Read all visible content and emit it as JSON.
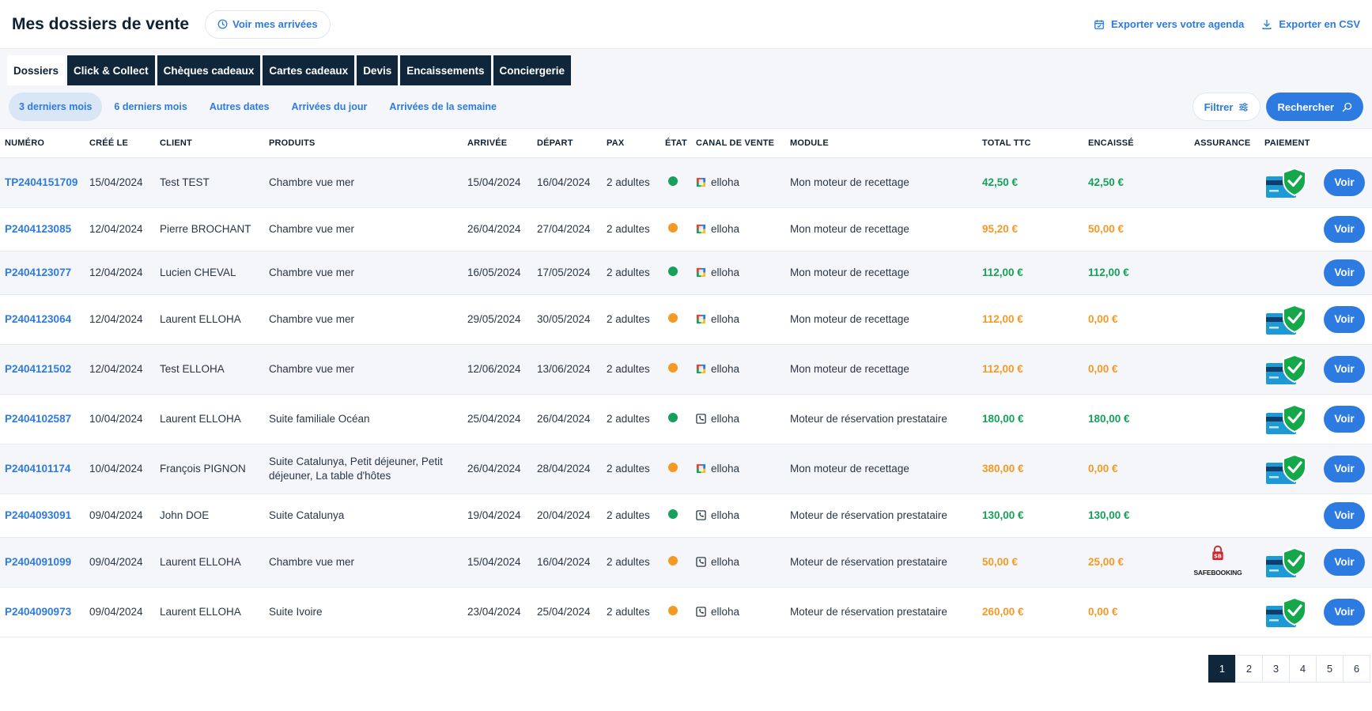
{
  "header": {
    "title": "Mes dossiers de vente",
    "arrivals_button": "Voir mes arrivées",
    "export_agenda": "Exporter vers votre agenda",
    "export_csv": "Exporter en CSV"
  },
  "tabs": [
    {
      "label": "Dossiers",
      "active": true
    },
    {
      "label": "Click & Collect",
      "active": false
    },
    {
      "label": "Chèques cadeaux",
      "active": false
    },
    {
      "label": "Cartes cadeaux",
      "active": false
    },
    {
      "label": "Devis",
      "active": false
    },
    {
      "label": "Encaissements",
      "active": false
    },
    {
      "label": "Conciergerie",
      "active": false
    }
  ],
  "periods": [
    {
      "label": "3 derniers mois",
      "active": true
    },
    {
      "label": "6 derniers mois",
      "active": false
    },
    {
      "label": "Autres dates",
      "active": false
    },
    {
      "label": "Arrivées du jour",
      "active": false
    },
    {
      "label": "Arrivées de la semaine",
      "active": false
    }
  ],
  "filter_label": "Filtrer",
  "search_label": "Rechercher",
  "table": {
    "columns": [
      "NUMÉRO",
      "CRÉÉ LE",
      "CLIENT",
      "PRODUITS",
      "ARRIVÉE",
      "DÉPART",
      "PAX",
      "ÉTAT",
      "CANAL DE VENTE",
      "MODULE",
      "TOTAL TTC",
      "ENCAISSÉ",
      "ASSURANCE",
      "PAIEMENT"
    ],
    "action_label": "Voir",
    "rows": [
      {
        "numero": "TP2404151709",
        "cree_le": "15/04/2024",
        "client": "Test TEST",
        "produits": "Chambre vue mer",
        "arrivee": "15/04/2024",
        "depart": "16/04/2024",
        "pax": "2 adultes",
        "etat": "green",
        "canal": "elloha",
        "canal_icon": "elloha-logo-icon",
        "module": "Mon moteur de recettage",
        "total": "42,50 €",
        "encaisse": "42,50 €",
        "status_color": "green",
        "assurance": "",
        "paiement": true
      },
      {
        "numero": "P2404123085",
        "cree_le": "12/04/2024",
        "client": "Pierre BROCHANT",
        "produits": "Chambre vue mer",
        "arrivee": "26/04/2024",
        "depart": "27/04/2024",
        "pax": "2 adultes",
        "etat": "orange",
        "canal": "elloha",
        "canal_icon": "elloha-logo-icon",
        "module": "Mon moteur de recettage",
        "total": "95,20 €",
        "encaisse": "50,00 €",
        "status_color": "orange",
        "assurance": "",
        "paiement": false
      },
      {
        "numero": "P2404123077",
        "cree_le": "12/04/2024",
        "client": "Lucien CHEVAL",
        "produits": "Chambre vue mer",
        "arrivee": "16/05/2024",
        "depart": "17/05/2024",
        "pax": "2 adultes",
        "etat": "green",
        "canal": "elloha",
        "canal_icon": "elloha-logo-icon",
        "module": "Mon moteur de recettage",
        "total": "112,00 €",
        "encaisse": "112,00 €",
        "status_color": "green",
        "assurance": "",
        "paiement": false
      },
      {
        "numero": "P2404123064",
        "cree_le": "12/04/2024",
        "client": "Laurent ELLOHA",
        "produits": "Chambre vue mer",
        "arrivee": "29/05/2024",
        "depart": "30/05/2024",
        "pax": "2 adultes",
        "etat": "orange",
        "canal": "elloha",
        "canal_icon": "elloha-logo-icon",
        "module": "Mon moteur de recettage",
        "total": "112,00 €",
        "encaisse": "0,00 €",
        "status_color": "orange",
        "assurance": "",
        "paiement": true
      },
      {
        "numero": "P2404121502",
        "cree_le": "12/04/2024",
        "client": "Test ELLOHA",
        "produits": "Chambre vue mer",
        "arrivee": "12/06/2024",
        "depart": "13/06/2024",
        "pax": "2 adultes",
        "etat": "orange",
        "canal": "elloha",
        "canal_icon": "elloha-logo-icon",
        "module": "Mon moteur de recettage",
        "total": "112,00 €",
        "encaisse": "0,00 €",
        "status_color": "orange",
        "assurance": "",
        "paiement": true
      },
      {
        "numero": "P2404102587",
        "cree_le": "10/04/2024",
        "client": "Laurent ELLOHA",
        "produits": "Suite familiale Océan",
        "arrivee": "25/04/2024",
        "depart": "26/04/2024",
        "pax": "2 adultes",
        "etat": "green",
        "canal": "elloha",
        "canal_icon": "phone-icon",
        "module": "Moteur de réservation prestataire",
        "total": "180,00 €",
        "encaisse": "180,00 €",
        "status_color": "green",
        "assurance": "",
        "paiement": true
      },
      {
        "numero": "P2404101174",
        "cree_le": "10/04/2024",
        "client": "François PIGNON",
        "produits": "Suite Catalunya, Petit déjeuner, Petit déjeuner, La table d'hôtes",
        "arrivee": "26/04/2024",
        "depart": "28/04/2024",
        "pax": "2 adultes",
        "etat": "orange",
        "canal": "elloha",
        "canal_icon": "elloha-logo-icon",
        "module": "Mon moteur de recettage",
        "total": "380,00 €",
        "encaisse": "0,00 €",
        "status_color": "orange",
        "assurance": "",
        "paiement": true
      },
      {
        "numero": "P2404093091",
        "cree_le": "09/04/2024",
        "client": "John DOE",
        "produits": "Suite Catalunya",
        "arrivee": "19/04/2024",
        "depart": "20/04/2024",
        "pax": "2 adultes",
        "etat": "green",
        "canal": "elloha",
        "canal_icon": "phone-icon",
        "module": "Moteur de réservation prestataire",
        "total": "130,00 €",
        "encaisse": "130,00 €",
        "status_color": "green",
        "assurance": "",
        "paiement": false
      },
      {
        "numero": "P2404091099",
        "cree_le": "09/04/2024",
        "client": "Laurent ELLOHA",
        "produits": "Chambre vue mer",
        "arrivee": "15/04/2024",
        "depart": "16/04/2024",
        "pax": "2 adultes",
        "etat": "orange",
        "canal": "elloha",
        "canal_icon": "phone-icon",
        "module": "Moteur de réservation prestataire",
        "total": "50,00 €",
        "encaisse": "25,00 €",
        "status_color": "orange",
        "assurance": "SAFEBOOKING",
        "paiement": true
      },
      {
        "numero": "P2404090973",
        "cree_le": "09/04/2024",
        "client": "Laurent ELLOHA",
        "produits": "Suite Ivoire",
        "arrivee": "23/04/2024",
        "depart": "25/04/2024",
        "pax": "2 adultes",
        "etat": "orange",
        "canal": "elloha",
        "canal_icon": "phone-icon",
        "module": "Moteur de réservation prestataire",
        "total": "260,00 €",
        "encaisse": "0,00 €",
        "status_color": "orange",
        "assurance": "",
        "paiement": true
      }
    ]
  },
  "pagination": {
    "pages": [
      "1",
      "2",
      "3",
      "4",
      "5",
      "6"
    ],
    "current": "1"
  },
  "colors": {
    "accent": "#2d7be0",
    "dark": "#10263a",
    "green": "#16a05a",
    "orange": "#f39a25"
  }
}
